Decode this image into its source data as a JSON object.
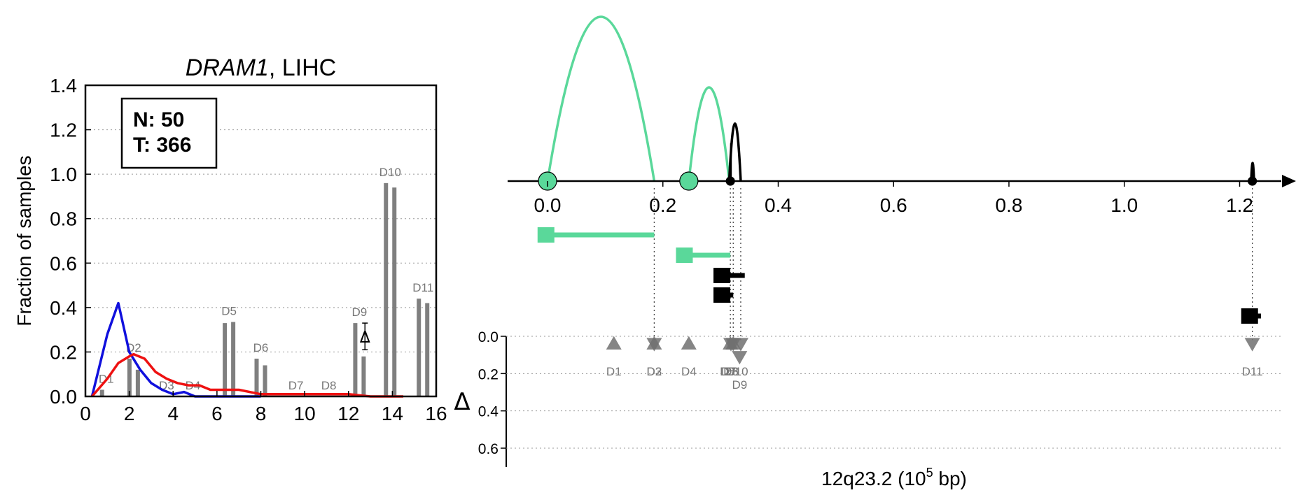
{
  "chart_data": [
    {
      "type": "line",
      "title_gene": "DRAM1",
      "title_rest": ", LIHC",
      "ylabel": "Fraction of samples",
      "xlim": [
        0,
        16
      ],
      "ylim": [
        0,
        1.4
      ],
      "xticks": [
        0,
        2,
        4,
        6,
        8,
        10,
        12,
        14,
        16
      ],
      "yticks": [
        0.0,
        0.2,
        0.4,
        0.6,
        0.8,
        1.0,
        1.2,
        1.4
      ],
      "grid": "horizontal dotted",
      "legend_box": {
        "line1": "N: 50",
        "line2": "T: 366",
        "placement": "top-left"
      },
      "series": [
        {
          "color": "#1010dd",
          "x": [
            0.3,
            1.0,
            1.5,
            2.0,
            2.5,
            3.0,
            3.5,
            4.0,
            4.5,
            5.0,
            5.5,
            6.0,
            7.0,
            8.0
          ],
          "y": [
            0.0,
            0.28,
            0.42,
            0.2,
            0.12,
            0.06,
            0.03,
            0.01,
            0.02,
            0.0,
            0.0,
            0.0,
            0.0,
            0.0
          ]
        },
        {
          "color": "#ee1111",
          "x": [
            0.3,
            1.0,
            1.5,
            2.0,
            2.2,
            2.7,
            3.2,
            3.7,
            4.2,
            4.7,
            5.2,
            5.7,
            6.0,
            7.0,
            8.0,
            9.0,
            10.0,
            11.0,
            12.0,
            13.0,
            14.0,
            14.5
          ],
          "y": [
            0.0,
            0.08,
            0.15,
            0.18,
            0.19,
            0.17,
            0.11,
            0.08,
            0.06,
            0.05,
            0.05,
            0.03,
            0.03,
            0.03,
            0.01,
            0.01,
            0.01,
            0.01,
            0.01,
            0.0,
            0.0,
            0.0
          ]
        }
      ],
      "bars": [
        {
          "label": "D1",
          "values": [
            0.03,
            0.0
          ],
          "x": 0.95
        },
        {
          "label": "D2",
          "values": [
            0.17,
            0.12
          ],
          "x": 2.2
        },
        {
          "label": "D3",
          "values": [
            0.0,
            0.0
          ],
          "x": 3.7
        },
        {
          "label": "D4",
          "values": [
            0.0,
            0.0
          ],
          "x": 4.9
        },
        {
          "label": "D5",
          "values": [
            0.33,
            0.335
          ],
          "x": 6.55
        },
        {
          "label": "D6",
          "values": [
            0.17,
            0.14
          ],
          "x": 8.0
        },
        {
          "label": "D7",
          "values": [
            0.0,
            0.0
          ],
          "x": 9.6
        },
        {
          "label": "D8",
          "values": [
            0.0,
            0.0
          ],
          "x": 11.1
        },
        {
          "label": "D9",
          "values": [
            0.33,
            0.18
          ],
          "x": 12.5
        },
        {
          "label": "D10",
          "values": [
            0.96,
            0.94
          ],
          "x": 13.9
        },
        {
          "label": "D11",
          "values": [
            0.44,
            0.42
          ],
          "x": 15.4
        }
      ],
      "delta_marker": {
        "symbol": "Δ",
        "x": 12.75,
        "y": 0.27,
        "err_low": 0.21,
        "err_high": 0.33
      }
    },
    {
      "type": "scatter",
      "xlabel_prefix": "12q23.2 (10",
      "xlabel_sup": "5",
      "xlabel_suffix": " bp)",
      "top_xticks": [
        "0.0",
        "0.2",
        "0.4",
        "0.6",
        "0.8",
        "1.0",
        "1.2"
      ],
      "top_xtick_values": [
        0.0,
        0.2,
        0.4,
        0.6,
        0.8,
        1.0,
        1.2
      ],
      "xlim": [
        -0.07,
        1.33
      ],
      "delta_ylabel": "Δ",
      "delta_yticks": [
        "0.0",
        "0.2",
        "0.4",
        "0.6"
      ],
      "delta_ytick_values": [
        0.0,
        0.2,
        0.4,
        0.6
      ],
      "colors": {
        "highlight": "#5ad89a",
        "black": "#000000",
        "marker": "#707070"
      },
      "arcs": [
        {
          "start": 0.0,
          "end": 0.185,
          "height": 1.0,
          "color": "#5ad89a"
        },
        {
          "start": 0.245,
          "end": 0.315,
          "height": 0.57,
          "color": "#5ad89a"
        },
        {
          "start": 0.315,
          "end": 0.335,
          "height": 0.35,
          "color": "#000000"
        },
        {
          "start": 1.22,
          "end": 1.225,
          "height": 0.11,
          "color": "#000000"
        }
      ],
      "spikes": [
        {
          "x": 0.318,
          "height": 0.23,
          "color": "#000000"
        }
      ],
      "circles": [
        {
          "x": 0.0,
          "color": "#5ad89a"
        },
        {
          "x": 0.245,
          "color": "#5ad89a"
        },
        {
          "x": 0.317,
          "color": "#000000"
        },
        {
          "x": 1.222,
          "color": "#000000"
        }
      ],
      "transcripts": [
        {
          "start": -0.01,
          "end": 0.185,
          "row": 0,
          "color": "#5ad89a"
        },
        {
          "start": 0.23,
          "end": 0.317,
          "row": 1,
          "color": "#5ad89a"
        },
        {
          "start": 0.295,
          "end": 0.342,
          "row": 2,
          "color": "#000000"
        },
        {
          "start": 0.295,
          "end": 0.322,
          "row": 3,
          "color": "#000000"
        },
        {
          "start": 1.21,
          "end": 1.237,
          "row": 4,
          "color": "#000000"
        }
      ],
      "guides": [
        0.185,
        0.317,
        0.322,
        0.335,
        1.222
      ],
      "markers": [
        {
          "label": "D1",
          "x": 0.115,
          "delta": 0.04,
          "dir": "up",
          "label_x": 0.115,
          "label_row": 0
        },
        {
          "label": "D2",
          "x": 0.185,
          "delta": 0.04,
          "dir": "up",
          "label_x": 0.185,
          "label_row": 0
        },
        {
          "label": "D3",
          "x": 0.185,
          "delta": 0.04,
          "dir": "down",
          "label_x": 0.185,
          "label_row": 0
        },
        {
          "label": "D4",
          "x": 0.245,
          "delta": 0.04,
          "dir": "up",
          "label_x": 0.245,
          "label_row": 0
        },
        {
          "label": "D5",
          "x": 0.317,
          "delta": 0.04,
          "dir": "up",
          "label_x": 0.312,
          "label_row": 0
        },
        {
          "label": "D6",
          "x": 0.322,
          "delta": 0.04,
          "dir": "up",
          "label_x": 0.318,
          "label_row": 0
        },
        {
          "label": "D7",
          "x": 0.318,
          "delta": 0.04,
          "dir": "down",
          "label_x": 0.314,
          "label_row": 0
        },
        {
          "label": "D8",
          "x": 0.322,
          "delta": 0.04,
          "dir": "down",
          "label_x": 0.318,
          "label_row": 0
        },
        {
          "label": "D9",
          "x": 0.333,
          "delta": 0.11,
          "dir": "down",
          "label_x": 0.333,
          "label_row": 1
        },
        {
          "label": "D10",
          "x": 0.335,
          "delta": 0.04,
          "dir": "down",
          "label_x": 0.329,
          "label_row": 0
        },
        {
          "label": "D11",
          "x": 1.222,
          "delta": 0.04,
          "dir": "down",
          "label_x": 1.222,
          "label_row": 0
        }
      ]
    }
  ]
}
